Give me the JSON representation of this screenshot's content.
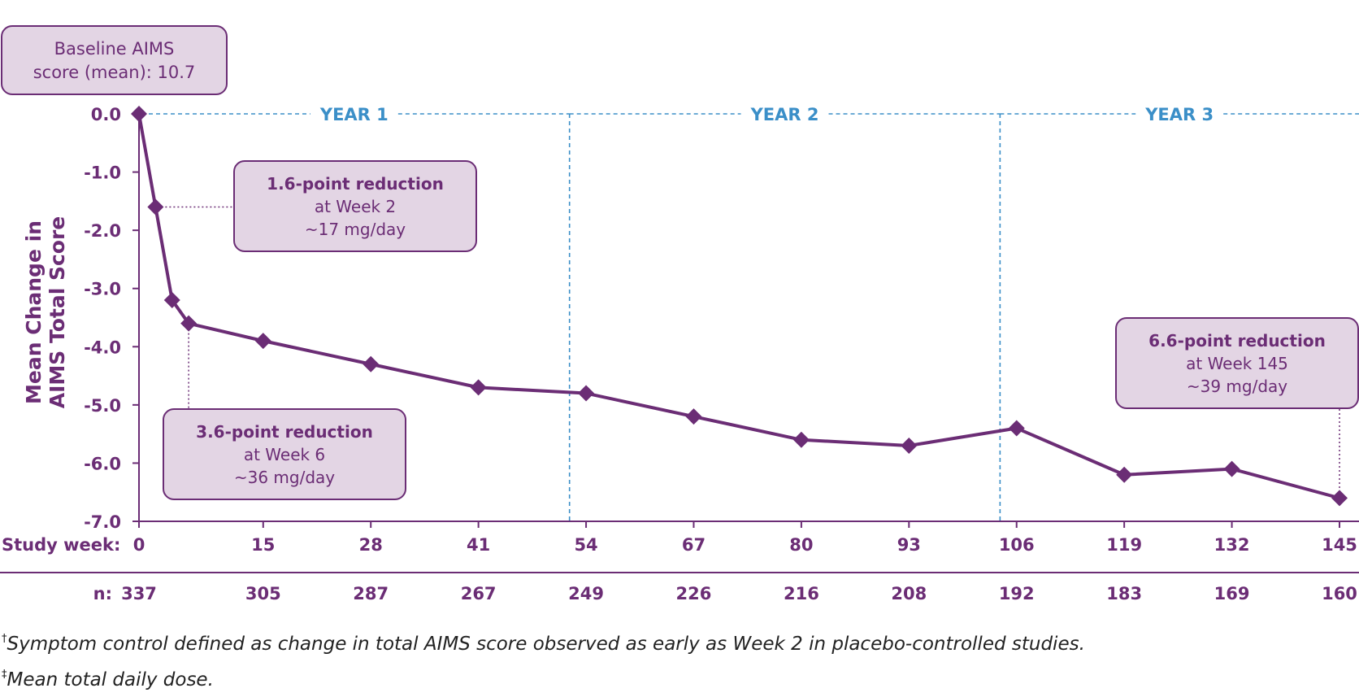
{
  "chart_data": {
    "type": "line",
    "ylabel_lines": [
      "Mean Change in",
      "AIMS Total Score"
    ],
    "ylim": [
      -7.0,
      0.0
    ],
    "yticks": [
      "0.0",
      "-1.0",
      "-2.0",
      "-3.0",
      "-4.0",
      "-5.0",
      "-6.0",
      "-7.0"
    ],
    "x_row_label": "Study week:",
    "x_ticks": [
      "0",
      "15",
      "28",
      "41",
      "54",
      "67",
      "80",
      "93",
      "106",
      "119",
      "132",
      "145"
    ],
    "n_row_label": "n:",
    "n_values": [
      "337",
      "305",
      "287",
      "267",
      "249",
      "226",
      "216",
      "208",
      "192",
      "183",
      "169",
      "160"
    ],
    "year_labels": [
      "YEAR 1",
      "YEAR 2",
      "YEAR 3"
    ],
    "year_boundaries": [
      52,
      104
    ],
    "series": [
      {
        "x": [
          0,
          2,
          4,
          6,
          15,
          28,
          41,
          54,
          67,
          80,
          93,
          106,
          119,
          132,
          145
        ],
        "y": [
          0.0,
          -1.6,
          -3.2,
          -3.6,
          -3.9,
          -4.3,
          -4.7,
          -4.8,
          -5.2,
          -5.6,
          -5.7,
          -5.4,
          -6.2,
          -6.1,
          -6.6
        ]
      }
    ],
    "grid": false,
    "colors": {
      "line": "#6b2d75",
      "year": "#3b8fc8",
      "callout_fill": "#e3d5e4"
    }
  },
  "baseline_box": {
    "line1": "Baseline AIMS",
    "line2": "score (mean): 10.7"
  },
  "callouts": [
    {
      "title": "1.6-point reduction",
      "week": "at Week 2",
      "dose": "~17 mg/day"
    },
    {
      "title": "3.6-point reduction",
      "week": "at Week 6",
      "dose": "~36 mg/day"
    },
    {
      "title": "6.6-point reduction",
      "week": "at Week 145",
      "dose": "~39 mg/day"
    }
  ],
  "footnotes": [
    {
      "mark": "†",
      "text": "Symptom control defined as change in total AIMS score observed as early as Week 2 in placebo-controlled studies."
    },
    {
      "mark": "‡",
      "text": "Mean total daily dose."
    }
  ]
}
